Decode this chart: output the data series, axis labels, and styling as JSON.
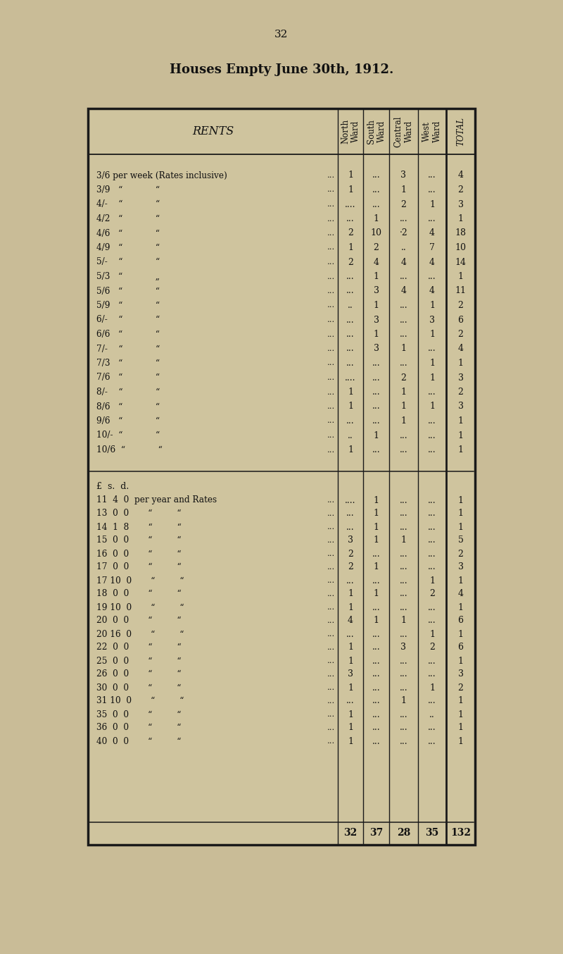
{
  "title": "Houses Empty June 30th, 1912.",
  "page_number": "32",
  "bg_color": "#c9bc97",
  "table_bg": "#cfc49e",
  "weekly_rows": [
    [
      "3/6 per week (Rates inclusive)",
      "...",
      "1",
      "...",
      "3",
      "...",
      "4"
    ],
    [
      "3/9   “            “",
      "...",
      "1",
      "...",
      "1",
      "...",
      "2"
    ],
    [
      "4/-    “            “",
      "...",
      "....",
      "...",
      "2",
      "1",
      "3"
    ],
    [
      "4/2   “            “",
      "...",
      "...",
      "1",
      "...",
      "...",
      "1"
    ],
    [
      "4/6   “            “",
      "...",
      "2",
      "10",
      "·2",
      "4",
      "18"
    ],
    [
      "4/9   “            “",
      "...",
      "1",
      "2",
      "..",
      "7",
      "10"
    ],
    [
      "5/-    “            “",
      "...",
      "2",
      "4",
      "4",
      "4",
      "14"
    ],
    [
      "5/3   “            „",
      "...",
      "...",
      "1",
      "...",
      "...",
      "1"
    ],
    [
      "5/6   “            “",
      "...",
      "...",
      "3",
      "4",
      "4",
      "11"
    ],
    [
      "5/9   “            “",
      "...",
      "..",
      "1",
      "...",
      "1",
      "2"
    ],
    [
      "6/-    “            “",
      "...",
      "...",
      "3",
      "...",
      "3",
      "6"
    ],
    [
      "6/6   “            “",
      "...",
      "...",
      "1",
      "...",
      "1",
      "2"
    ],
    [
      "7/-    “            “",
      "...",
      "...",
      "3",
      "1",
      "...",
      "4"
    ],
    [
      "7/3   “            “",
      "...",
      "...",
      "...",
      "...",
      "1",
      "1"
    ],
    [
      "7/6   “            “",
      "...",
      "....",
      "...",
      "2",
      "1",
      "3"
    ],
    [
      "8/-    “            “",
      "...",
      "1",
      "...",
      "1",
      "...",
      "2"
    ],
    [
      "8/6   “            “",
      "...",
      "1",
      "...",
      "1",
      "1",
      "3"
    ],
    [
      "9/6   “            “",
      "...",
      "...",
      "...",
      "1",
      "...",
      "1"
    ],
    [
      "10/-  “            “",
      "...",
      "..",
      "1",
      "...",
      "...",
      "1"
    ],
    [
      "10/6  “            “",
      "...",
      "1",
      "...",
      "...",
      "...",
      "1"
    ]
  ],
  "annual_rows": [
    [
      "11  4  0  per year and Rates",
      "...",
      "....",
      "1",
      "...",
      "...",
      "1"
    ],
    [
      "13  0  0       “         “",
      "...",
      "...",
      "1",
      "...",
      "...",
      "1"
    ],
    [
      "14  1  8       “         “",
      "...",
      "...",
      "1",
      "...",
      "...",
      "1"
    ],
    [
      "15  0  0       “         “",
      "...",
      "3",
      "1",
      "1",
      "...",
      "5"
    ],
    [
      "16  0  0       “         “",
      "...",
      "2",
      "...",
      "...",
      "...",
      "2"
    ],
    [
      "17  0  0       “         “",
      "...",
      "2",
      "1",
      "...",
      "...",
      "3"
    ],
    [
      "17 10  0       “         “",
      "...",
      "...",
      "...",
      "...",
      "1",
      "1"
    ],
    [
      "18  0  0       “         “",
      "...",
      "1",
      "1",
      "...",
      "2",
      "4"
    ],
    [
      "19 10  0       “         “",
      "...",
      "1",
      "...",
      "...",
      "...",
      "1"
    ],
    [
      "20  0  0       “         “",
      "...",
      "4",
      "1",
      "1",
      "...",
      "6"
    ],
    [
      "20 16  0       “         “",
      "...",
      "...",
      "...",
      "...",
      "1",
      "1"
    ],
    [
      "22  0  0       “         “",
      "...",
      "1",
      "...",
      "3",
      "2",
      "6"
    ],
    [
      "25  0  0       “         “",
      "...",
      "1",
      "...",
      "...",
      "...",
      "1"
    ],
    [
      "26  0  0       “         “",
      "...",
      "3",
      "...",
      "...",
      "...",
      "3"
    ],
    [
      "30  0  0       “         “",
      "...",
      "1",
      "...",
      "...",
      "1",
      "2"
    ],
    [
      "31 10  0       “         “",
      "...",
      "...",
      "...",
      "1",
      "...",
      "1"
    ],
    [
      "35  0  0       “         “",
      "...",
      "1",
      "...",
      "...",
      "..",
      "1"
    ],
    [
      "36  0  0       “         “",
      "...",
      "1",
      "...",
      "...",
      "...",
      "1"
    ],
    [
      "40  0  0       “         “",
      "...",
      "1",
      "...",
      "...",
      "...",
      "1"
    ]
  ],
  "totals_row": [
    "",
    "32",
    "37",
    "28",
    "35",
    "132"
  ]
}
